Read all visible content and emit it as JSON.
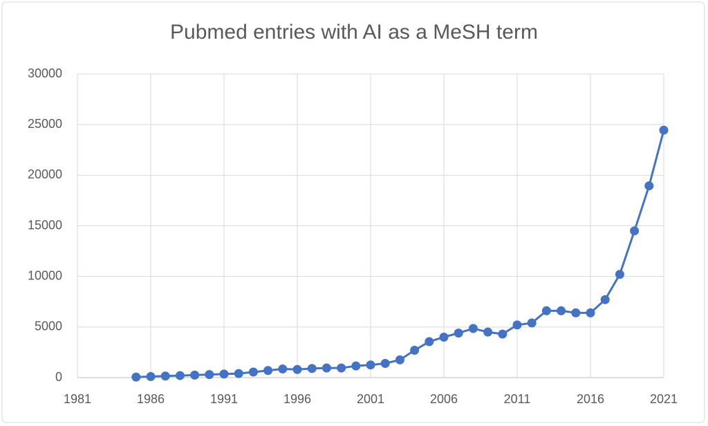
{
  "chart_data": {
    "type": "line",
    "title": "Pubmed entries with AI as a MeSH term",
    "series": [
      {
        "name": "Pubmed entries",
        "color": "#4472c4",
        "x": [
          1985,
          1986,
          1987,
          1988,
          1989,
          1990,
          1991,
          1992,
          1993,
          1994,
          1995,
          1996,
          1997,
          1998,
          1999,
          2000,
          2001,
          2002,
          2003,
          2004,
          2005,
          2006,
          2007,
          2008,
          2009,
          2010,
          2011,
          2012,
          2013,
          2014,
          2015,
          2016,
          2017,
          2018,
          2019,
          2020,
          2021
        ],
        "values": [
          50,
          100,
          150,
          200,
          250,
          300,
          350,
          400,
          550,
          700,
          850,
          800,
          900,
          950,
          950,
          1150,
          1250,
          1400,
          1750,
          2700,
          3550,
          4000,
          4400,
          4850,
          4500,
          4300,
          5200,
          5400,
          6600,
          6600,
          6400,
          6400,
          7700,
          10200,
          14500,
          18950,
          24450
        ]
      }
    ],
    "xlim": [
      1981,
      2021
    ],
    "xticks": [
      1981,
      1986,
      1991,
      1996,
      2001,
      2006,
      2011,
      2016,
      2021
    ],
    "ylim": [
      0,
      30000
    ],
    "yticks": [
      0,
      5000,
      10000,
      15000,
      20000,
      25000,
      30000
    ],
    "grid": true
  }
}
